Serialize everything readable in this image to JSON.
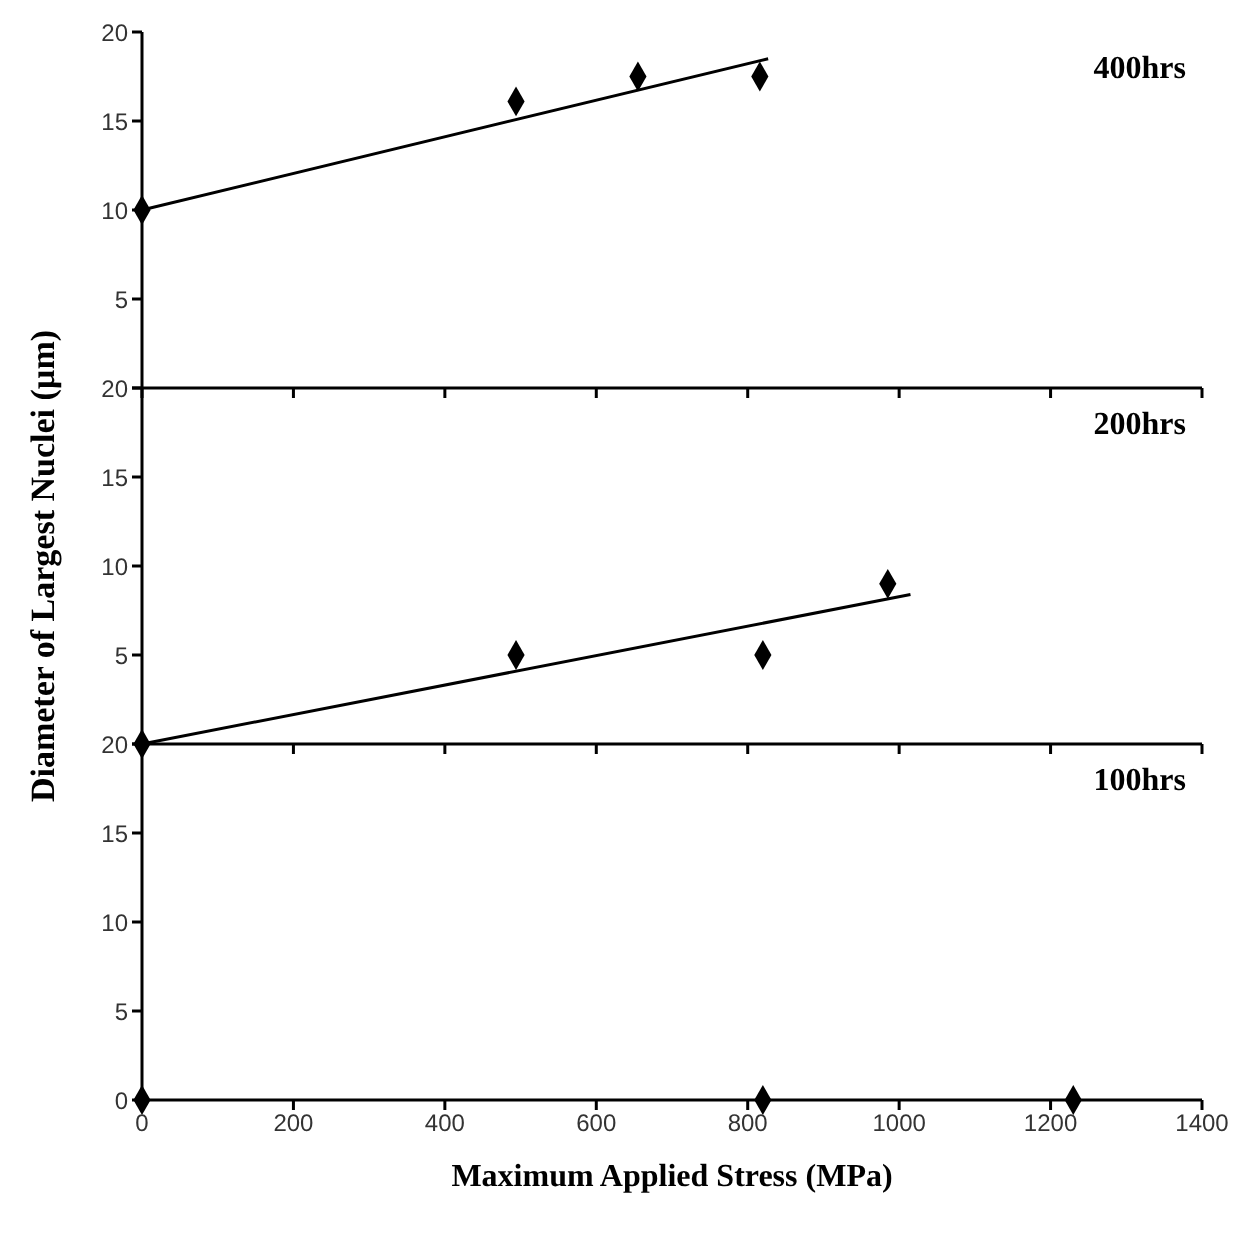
{
  "chart_data": [
    {
      "type": "scatter",
      "title": "400hrs",
      "xlim": [
        0,
        1400
      ],
      "xticks": [
        0,
        200,
        400,
        600,
        800,
        1000,
        1200,
        1400
      ],
      "ylim": [
        0,
        20
      ],
      "yticks": [
        {
          "value": 0,
          "label": null
        },
        5,
        10,
        15,
        20
      ],
      "tick_labels": "y",
      "grid": false,
      "series": [
        {
          "color": "#000000",
          "marker": "diamond",
          "x": [
            0,
            494,
            655,
            816
          ],
          "values": [
            10,
            16.1,
            17.5,
            17.5
          ]
        },
        {
          "type": "line",
          "color": "#000000",
          "marker": "none",
          "line_style": "solid",
          "x": [
            0,
            827
          ],
          "values": [
            10,
            18.5
          ]
        }
      ]
    },
    {
      "type": "scatter",
      "title": "200hrs",
      "ylabel": "Diameter of Largest Nuclei (µm)",
      "xlim": [
        0,
        1400
      ],
      "xticks": [
        0,
        200,
        400,
        600,
        800,
        1000,
        1200,
        1400
      ],
      "ylim": [
        0,
        20
      ],
      "yticks": [
        {
          "value": 0,
          "label": null
        },
        5,
        10,
        15,
        20
      ],
      "tick_labels": "y",
      "grid": false,
      "series": [
        {
          "color": "#000000",
          "marker": "diamond",
          "x": [
            0,
            494,
            820,
            985
          ],
          "values": [
            0,
            5,
            5,
            9
          ]
        },
        {
          "type": "line",
          "color": "#000000",
          "marker": "none",
          "line_style": "solid",
          "x": [
            0,
            1015
          ],
          "values": [
            0,
            8.4
          ]
        }
      ]
    },
    {
      "type": "scatter",
      "title": "100hrs",
      "xlabel": "Maximum Applied Stress (MPa)",
      "xlim": [
        0,
        1400
      ],
      "xticks": [
        0,
        200,
        400,
        600,
        800,
        1000,
        1200,
        1400
      ],
      "ylim": [
        0,
        20
      ],
      "yticks": [
        0,
        5,
        10,
        15,
        20
      ],
      "grid": false,
      "series": [
        {
          "color": "#000000",
          "marker": "diamond",
          "x": [
            0,
            820,
            1230
          ],
          "values": [
            0,
            0,
            0
          ]
        }
      ]
    }
  ]
}
